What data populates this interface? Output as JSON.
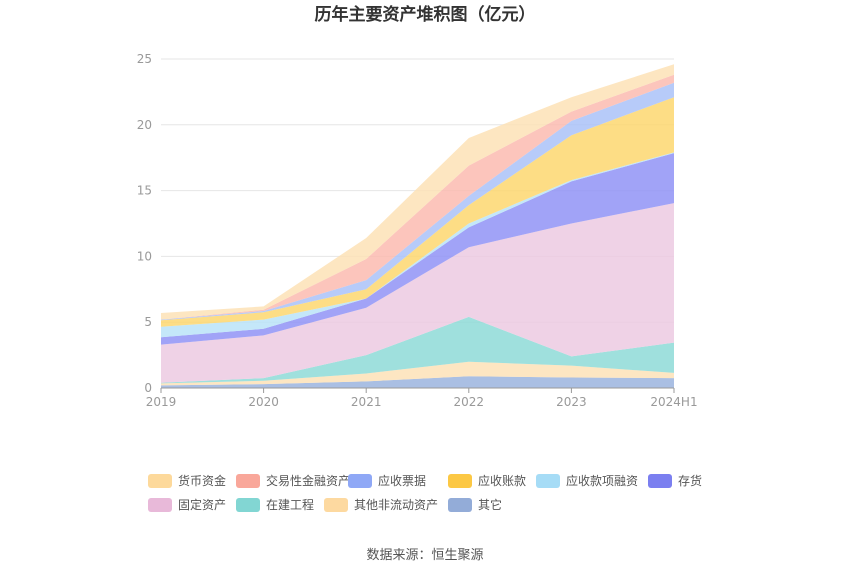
{
  "chart_data": {
    "type": "area",
    "stacked": true,
    "title": "历年主要资产堆积图（亿元）",
    "categories": [
      "2019",
      "2020",
      "2021",
      "2022",
      "2023",
      "2024H1"
    ],
    "ylim": [
      0,
      25
    ],
    "yticks": [
      "0",
      "5",
      "10",
      "15",
      "20",
      "25"
    ],
    "grid": true,
    "legend_position": "bottom",
    "series": [
      {
        "name": "其它",
        "color": "#97b1dd",
        "values": [
          0.2,
          0.3,
          0.5,
          0.9,
          0.8,
          0.75
        ]
      },
      {
        "name": "其他非流动资产",
        "color": "#fde0b5",
        "values": [
          0.15,
          0.25,
          0.6,
          1.1,
          0.9,
          0.4
        ]
      },
      {
        "name": "在建工程",
        "color": "#8ad9d6",
        "values": [
          0.05,
          0.2,
          1.4,
          3.4,
          0.7,
          2.3
        ]
      },
      {
        "name": "固定资产",
        "color": "#ebc8e0",
        "values": [
          2.9,
          3.25,
          3.6,
          5.3,
          10.1,
          10.6
        ]
      },
      {
        "name": "存货",
        "color": "#8c8ff5",
        "values": [
          0.55,
          0.5,
          0.7,
          1.5,
          3.2,
          3.8
        ]
      },
      {
        "name": "应收款项融资",
        "color": "#b7e2f8",
        "values": [
          0.8,
          0.7,
          0.0,
          0.3,
          0.1,
          0.05
        ]
      },
      {
        "name": "应收账款",
        "color": "#fdd56a",
        "values": [
          0.5,
          0.55,
          0.7,
          1.4,
          3.4,
          4.2
        ]
      },
      {
        "name": "应收票据",
        "color": "#a7bff8",
        "values": [
          0.05,
          0.1,
          0.7,
          0.7,
          1.1,
          1.1
        ]
      },
      {
        "name": "交易性金融资产",
        "color": "#fbb8ad",
        "values": [
          0.0,
          0.1,
          1.6,
          2.3,
          0.7,
          0.6
        ]
      },
      {
        "name": "货币资金",
        "color": "#fde1b3",
        "values": [
          0.5,
          0.25,
          1.6,
          2.1,
          1.1,
          0.8
        ]
      }
    ],
    "legend": [
      {
        "name": "货币资金",
        "color": "#fdd99b"
      },
      {
        "name": "交易性金融资产",
        "color": "#f9a79a"
      },
      {
        "name": "应收票据",
        "color": "#8fa8f6"
      },
      {
        "name": "应收账款",
        "color": "#fcc844"
      },
      {
        "name": "应收款项融资",
        "color": "#a6dcf6"
      },
      {
        "name": "存货",
        "color": "#7b7ff0"
      },
      {
        "name": "固定资产",
        "color": "#e8b9d9"
      },
      {
        "name": "在建工程",
        "color": "#82d6d3"
      },
      {
        "name": "其他非流动资产",
        "color": "#fdd9a0"
      },
      {
        "name": "其它",
        "color": "#93acd8"
      }
    ]
  },
  "source_text": "数据来源：恒生聚源"
}
